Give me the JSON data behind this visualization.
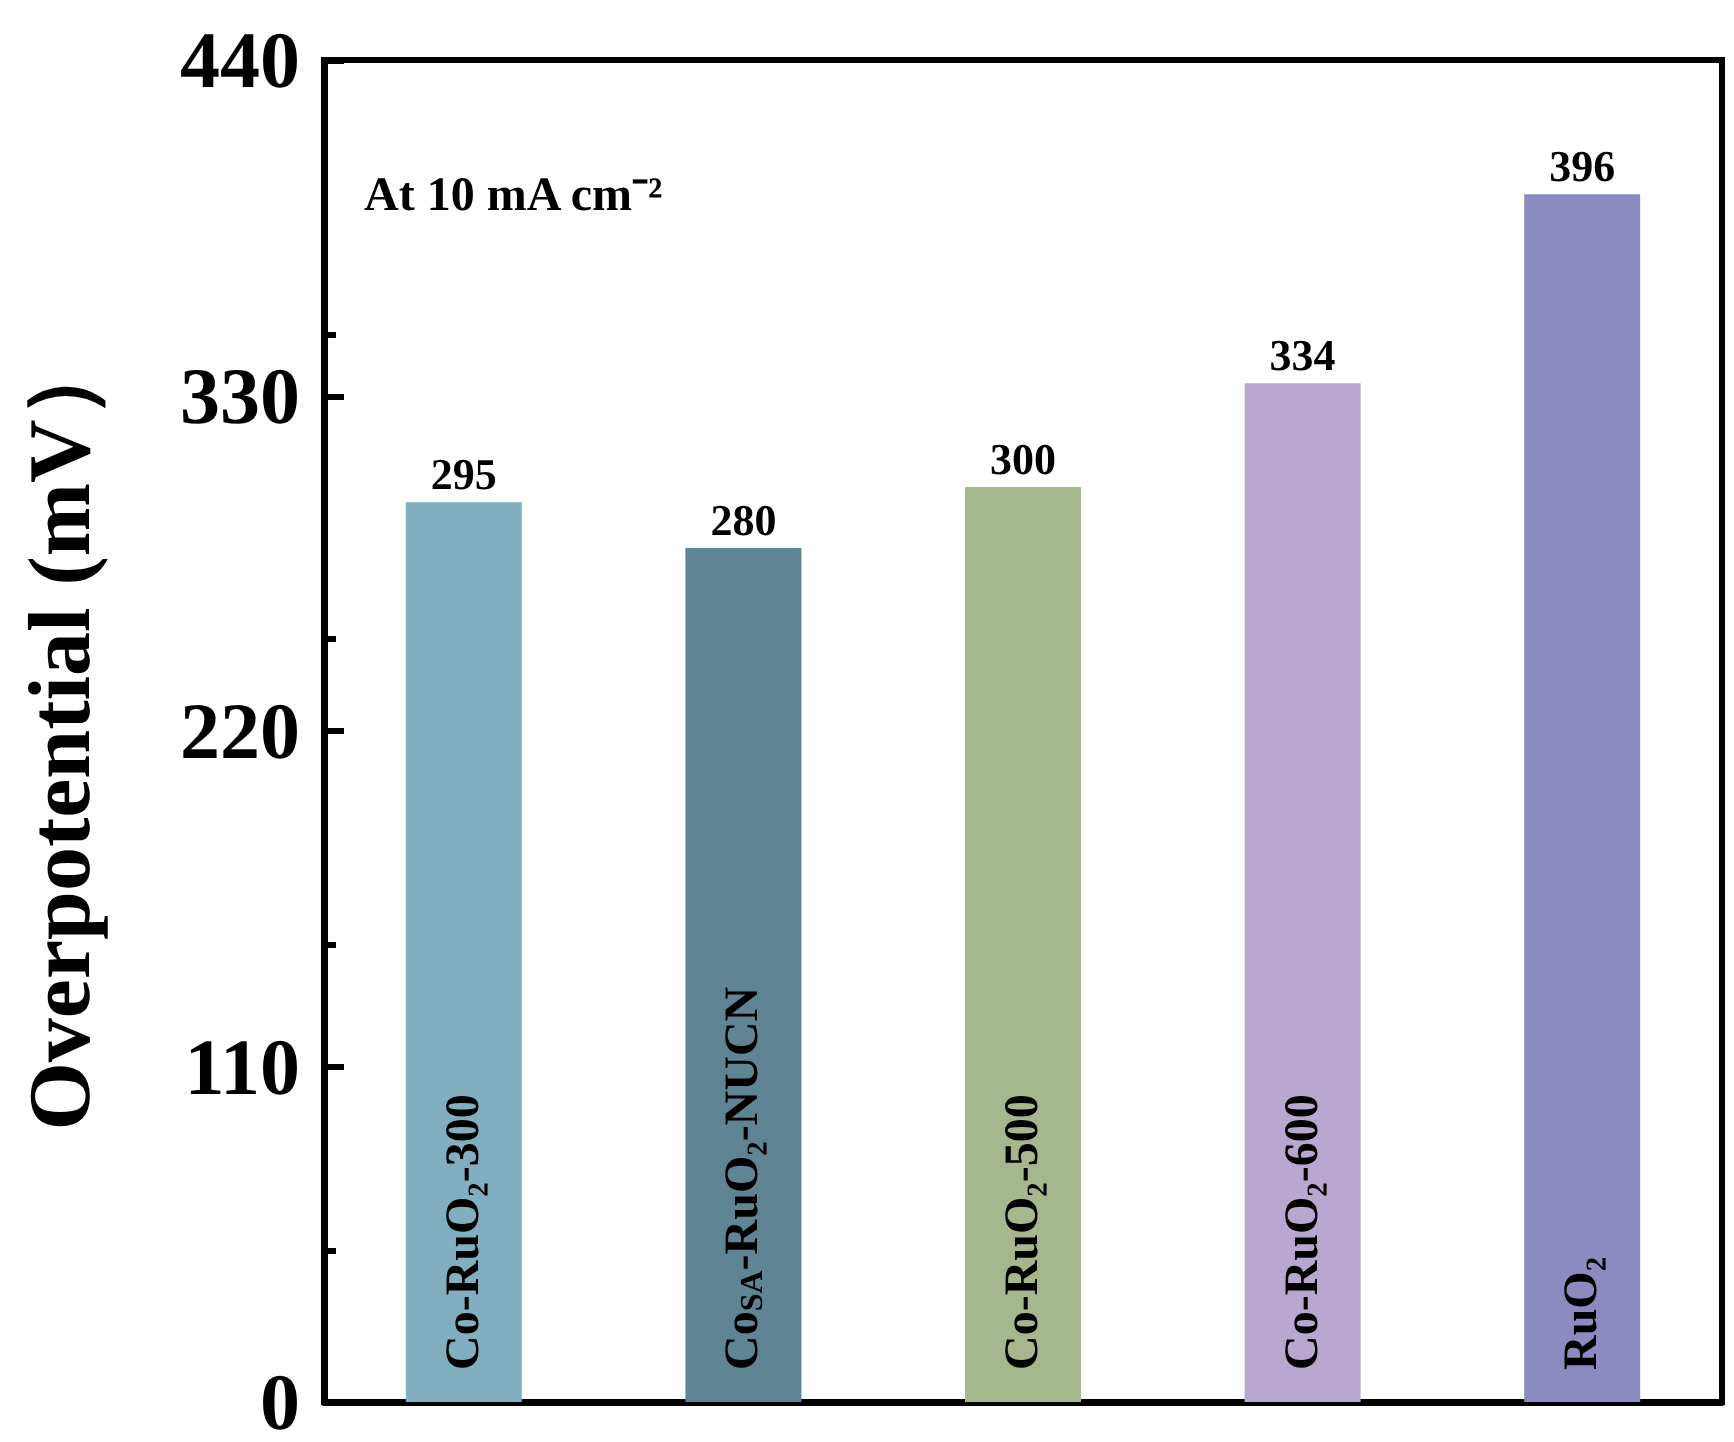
{
  "chart_data": {
    "type": "bar",
    "ylabel": "Overpotential (mV）",
    "categories": [
      "Co-RuO₂-300",
      "Co$_{SA}$-RuO₂-NUCN",
      "Co-RuO₂-500",
      "Co-RuO₂-600",
      "RuO₂"
    ],
    "values": [
      295,
      280,
      300,
      334,
      396
    ],
    "colors": [
      "#82afbf",
      "#5f8594",
      "#a6b78e",
      "#b8a8d0",
      "#8b8bbf"
    ],
    "ylim": [
      0,
      440
    ],
    "yticks": [
      0,
      110,
      220,
      330,
      440
    ],
    "data_labels": true,
    "grid": false,
    "annotations": [
      "At 10 mA cm⁻²"
    ]
  }
}
